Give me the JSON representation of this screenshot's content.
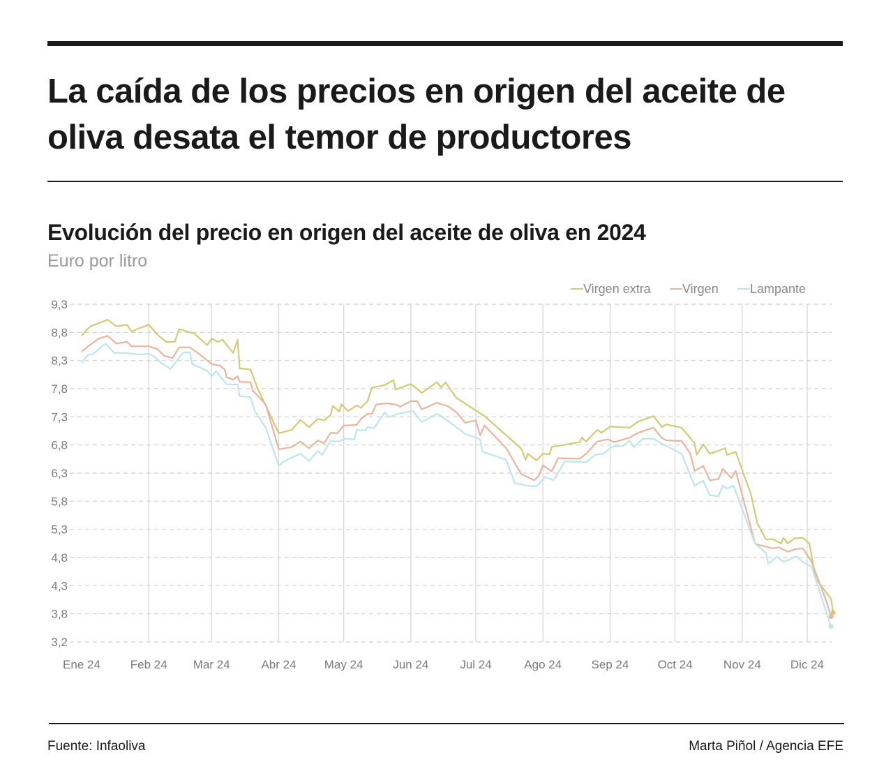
{
  "header": {
    "title": "La caída de los precios en origen del aceite de oliva desata el temor de productores"
  },
  "footer": {
    "source": "Fuente: Infaoliva",
    "credit": "Marta Piñol / Agencia EFE"
  },
  "chart_data": {
    "type": "line",
    "title": "Evolución del precio en origen del aceite de oliva en 2024",
    "subtitle": "Euro por litro",
    "xlabel": "",
    "ylabel": "",
    "ylim": [
      3.2,
      9.3
    ],
    "y_tick_labels": [
      "3,2",
      "3,8",
      "4,3",
      "4,8",
      "5,3",
      "5,8",
      "6,3",
      "6,8",
      "7,3",
      "7,8",
      "8,3",
      "8,8",
      "9,3"
    ],
    "x_tick_labels": [
      "Ene 24",
      "Feb 24",
      "Mar 24",
      "Abr 24",
      "May 24",
      "Jun 24",
      "Jul 24",
      "Ago 24",
      "Sep 24",
      "Oct 24",
      "Nov 24",
      "Dic 24"
    ],
    "grid": {
      "horizontal": "dashed",
      "vertical": "solid"
    },
    "legend_position": "top-right",
    "series": [
      {
        "name": "Virgen extra",
        "color": "#d2ca74",
        "points": [
          [
            "2024-01-01",
            8.73
          ],
          [
            "2024-01-05",
            8.9
          ],
          [
            "2024-01-13",
            9.02
          ],
          [
            "2024-01-17",
            8.9
          ],
          [
            "2024-01-22",
            8.93
          ],
          [
            "2024-01-24",
            8.81
          ],
          [
            "2024-02-01",
            8.93
          ],
          [
            "2024-02-05",
            8.75
          ],
          [
            "2024-02-09",
            8.62
          ],
          [
            "2024-02-13",
            8.62
          ],
          [
            "2024-02-15",
            8.85
          ],
          [
            "2024-02-22",
            8.77
          ],
          [
            "2024-02-28",
            8.56
          ],
          [
            "2024-03-01",
            8.68
          ],
          [
            "2024-03-04",
            8.62
          ],
          [
            "2024-03-06",
            8.66
          ],
          [
            "2024-03-11",
            8.42
          ],
          [
            "2024-03-13",
            8.66
          ],
          [
            "2024-03-14",
            8.14
          ],
          [
            "2024-03-19",
            8.12
          ],
          [
            "2024-03-22",
            7.8
          ],
          [
            "2024-04-01",
            6.97
          ],
          [
            "2024-04-07",
            7.03
          ],
          [
            "2024-04-11",
            7.21
          ],
          [
            "2024-04-15",
            7.08
          ],
          [
            "2024-04-19",
            7.23
          ],
          [
            "2024-04-22",
            7.2
          ],
          [
            "2024-04-25",
            7.3
          ],
          [
            "2024-04-26",
            7.46
          ],
          [
            "2024-04-29",
            7.36
          ],
          [
            "2024-04-30",
            7.49
          ],
          [
            "2024-05-03",
            7.37
          ],
          [
            "2024-05-07",
            7.47
          ],
          [
            "2024-05-09",
            7.43
          ],
          [
            "2024-05-12",
            7.55
          ],
          [
            "2024-05-14",
            7.79
          ],
          [
            "2024-05-20",
            7.84
          ],
          [
            "2024-05-24",
            7.93
          ],
          [
            "2024-05-25",
            7.76
          ],
          [
            "2024-06-01",
            7.86
          ],
          [
            "2024-06-06",
            7.7
          ],
          [
            "2024-06-13",
            7.89
          ],
          [
            "2024-06-15",
            7.8
          ],
          [
            "2024-06-17",
            7.89
          ],
          [
            "2024-06-22",
            7.61
          ],
          [
            "2024-07-01",
            7.38
          ],
          [
            "2024-07-05",
            7.28
          ],
          [
            "2024-07-18",
            6.83
          ],
          [
            "2024-07-22",
            6.69
          ],
          [
            "2024-07-24",
            6.49
          ],
          [
            "2024-07-25",
            6.6
          ],
          [
            "2024-07-29",
            6.48
          ],
          [
            "2024-08-01",
            6.6
          ],
          [
            "2024-08-04",
            6.59
          ],
          [
            "2024-08-05",
            6.72
          ],
          [
            "2024-08-18",
            6.81
          ],
          [
            "2024-08-19",
            6.89
          ],
          [
            "2024-08-21",
            6.82
          ],
          [
            "2024-08-26",
            7.03
          ],
          [
            "2024-08-28",
            6.98
          ],
          [
            "2024-09-01",
            7.09
          ],
          [
            "2024-09-10",
            7.07
          ],
          [
            "2024-09-14",
            7.18
          ],
          [
            "2024-09-21",
            7.28
          ],
          [
            "2024-09-25",
            7.08
          ],
          [
            "2024-09-27",
            7.13
          ],
          [
            "2024-10-04",
            7.07
          ],
          [
            "2024-10-10",
            6.79
          ],
          [
            "2024-10-11",
            6.58
          ],
          [
            "2024-10-14",
            6.77
          ],
          [
            "2024-10-17",
            6.6
          ],
          [
            "2024-10-21",
            6.65
          ],
          [
            "2024-10-24",
            6.7
          ],
          [
            "2024-10-25",
            6.58
          ],
          [
            "2024-10-29",
            6.63
          ],
          [
            "2024-11-05",
            5.87
          ],
          [
            "2024-11-08",
            5.34
          ],
          [
            "2024-11-12",
            5.05
          ],
          [
            "2024-11-15",
            5.06
          ],
          [
            "2024-11-19",
            4.98
          ],
          [
            "2024-11-20",
            5.08
          ],
          [
            "2024-11-22",
            4.98
          ],
          [
            "2024-11-25",
            5.07
          ],
          [
            "2024-11-29",
            5.08
          ],
          [
            "2024-12-02",
            4.98
          ],
          [
            "2024-12-05",
            4.34
          ],
          [
            "2024-12-12",
            3.98
          ],
          [
            "2024-12-13",
            3.73
          ]
        ]
      },
      {
        "name": "Virgen",
        "color": "#ebb49c",
        "points": [
          [
            "2024-01-01",
            8.44
          ],
          [
            "2024-01-04",
            8.54
          ],
          [
            "2024-01-09",
            8.68
          ],
          [
            "2024-01-13",
            8.73
          ],
          [
            "2024-01-17",
            8.59
          ],
          [
            "2024-01-22",
            8.62
          ],
          [
            "2024-01-24",
            8.54
          ],
          [
            "2024-02-01",
            8.54
          ],
          [
            "2024-02-05",
            8.49
          ],
          [
            "2024-02-08",
            8.37
          ],
          [
            "2024-02-12",
            8.33
          ],
          [
            "2024-02-15",
            8.52
          ],
          [
            "2024-02-20",
            8.52
          ],
          [
            "2024-02-24",
            8.41
          ],
          [
            "2024-03-01",
            8.22
          ],
          [
            "2024-03-05",
            8.19
          ],
          [
            "2024-03-07",
            8.12
          ],
          [
            "2024-03-08",
            7.98
          ],
          [
            "2024-03-11",
            7.94
          ],
          [
            "2024-03-13",
            8.0
          ],
          [
            "2024-03-14",
            7.9
          ],
          [
            "2024-03-19",
            7.89
          ],
          [
            "2024-03-20",
            7.74
          ],
          [
            "2024-03-26",
            7.49
          ],
          [
            "2024-04-01",
            6.68
          ],
          [
            "2024-04-07",
            6.72
          ],
          [
            "2024-04-11",
            6.82
          ],
          [
            "2024-04-15",
            6.7
          ],
          [
            "2024-04-19",
            6.84
          ],
          [
            "2024-04-22",
            6.79
          ],
          [
            "2024-04-25",
            6.98
          ],
          [
            "2024-04-28",
            6.97
          ],
          [
            "2024-05-01",
            7.11
          ],
          [
            "2024-05-07",
            7.12
          ],
          [
            "2024-05-09",
            7.23
          ],
          [
            "2024-05-12",
            7.32
          ],
          [
            "2024-05-14",
            7.32
          ],
          [
            "2024-05-16",
            7.49
          ],
          [
            "2024-05-21",
            7.51
          ],
          [
            "2024-05-25",
            7.49
          ],
          [
            "2024-05-27",
            7.45
          ],
          [
            "2024-06-01",
            7.55
          ],
          [
            "2024-06-04",
            7.55
          ],
          [
            "2024-06-06",
            7.4
          ],
          [
            "2024-06-13",
            7.52
          ],
          [
            "2024-06-18",
            7.46
          ],
          [
            "2024-06-22",
            7.35
          ],
          [
            "2024-06-26",
            7.16
          ],
          [
            "2024-07-01",
            7.2
          ],
          [
            "2024-07-03",
            6.93
          ],
          [
            "2024-07-05",
            7.11
          ],
          [
            "2024-07-15",
            6.7
          ],
          [
            "2024-07-22",
            6.23
          ],
          [
            "2024-07-28",
            6.12
          ],
          [
            "2024-07-30",
            6.2
          ],
          [
            "2024-08-01",
            6.39
          ],
          [
            "2024-08-05",
            6.28
          ],
          [
            "2024-08-08",
            6.52
          ],
          [
            "2024-08-18",
            6.51
          ],
          [
            "2024-08-21",
            6.6
          ],
          [
            "2024-08-26",
            6.82
          ],
          [
            "2024-08-31",
            6.86
          ],
          [
            "2024-09-03",
            6.81
          ],
          [
            "2024-09-10",
            6.89
          ],
          [
            "2024-09-14",
            6.98
          ],
          [
            "2024-09-21",
            7.07
          ],
          [
            "2024-09-25",
            6.88
          ],
          [
            "2024-09-27",
            6.84
          ],
          [
            "2024-10-04",
            6.83
          ],
          [
            "2024-10-08",
            6.6
          ],
          [
            "2024-10-10",
            6.29
          ],
          [
            "2024-10-14",
            6.38
          ],
          [
            "2024-10-17",
            6.12
          ],
          [
            "2024-10-21",
            6.14
          ],
          [
            "2024-10-23",
            6.33
          ],
          [
            "2024-10-27",
            6.16
          ],
          [
            "2024-10-29",
            6.29
          ],
          [
            "2024-11-07",
            4.97
          ],
          [
            "2024-11-15",
            4.89
          ],
          [
            "2024-11-18",
            4.91
          ],
          [
            "2024-11-22",
            4.83
          ],
          [
            "2024-11-26",
            4.88
          ],
          [
            "2024-11-29",
            4.89
          ],
          [
            "2024-12-03",
            4.65
          ],
          [
            "2024-12-10",
            3.92
          ],
          [
            "2024-12-12",
            3.66
          ]
        ]
      },
      {
        "name": "Lampante",
        "color": "#bce6eb",
        "points": [
          [
            "2024-01-01",
            8.24
          ],
          [
            "2024-01-04",
            8.39
          ],
          [
            "2024-01-06",
            8.39
          ],
          [
            "2024-01-12",
            8.59
          ],
          [
            "2024-01-16",
            8.42
          ],
          [
            "2024-01-21",
            8.42
          ],
          [
            "2024-01-28",
            8.39
          ],
          [
            "2024-02-01",
            8.41
          ],
          [
            "2024-02-04",
            8.34
          ],
          [
            "2024-02-07",
            8.23
          ],
          [
            "2024-02-11",
            8.13
          ],
          [
            "2024-02-17",
            8.43
          ],
          [
            "2024-02-20",
            8.43
          ],
          [
            "2024-02-21",
            8.22
          ],
          [
            "2024-02-28",
            8.1
          ],
          [
            "2024-03-01",
            8.0
          ],
          [
            "2024-03-03",
            8.09
          ],
          [
            "2024-03-08",
            7.85
          ],
          [
            "2024-03-13",
            7.85
          ],
          [
            "2024-03-14",
            7.64
          ],
          [
            "2024-03-19",
            7.62
          ],
          [
            "2024-03-21",
            7.36
          ],
          [
            "2024-03-26",
            7.07
          ],
          [
            "2024-04-01",
            6.38
          ],
          [
            "2024-04-03",
            6.45
          ],
          [
            "2024-04-07",
            6.53
          ],
          [
            "2024-04-11",
            6.6
          ],
          [
            "2024-04-15",
            6.47
          ],
          [
            "2024-04-19",
            6.65
          ],
          [
            "2024-04-21",
            6.58
          ],
          [
            "2024-04-25",
            6.83
          ],
          [
            "2024-04-29",
            6.82
          ],
          [
            "2024-05-01",
            6.87
          ],
          [
            "2024-05-06",
            6.86
          ],
          [
            "2024-05-07",
            7.03
          ],
          [
            "2024-05-11",
            7.02
          ],
          [
            "2024-05-12",
            7.08
          ],
          [
            "2024-05-15",
            7.06
          ],
          [
            "2024-05-20",
            7.35
          ],
          [
            "2024-05-22",
            7.26
          ],
          [
            "2024-05-26",
            7.32
          ],
          [
            "2024-05-31",
            7.36
          ],
          [
            "2024-06-02",
            7.37
          ],
          [
            "2024-06-06",
            7.17
          ],
          [
            "2024-06-13",
            7.32
          ],
          [
            "2024-06-15",
            7.28
          ],
          [
            "2024-06-21",
            7.11
          ],
          [
            "2024-06-26",
            6.96
          ],
          [
            "2024-07-03",
            6.86
          ],
          [
            "2024-07-04",
            6.64
          ],
          [
            "2024-07-15",
            6.49
          ],
          [
            "2024-07-19",
            6.07
          ],
          [
            "2024-07-25",
            6.02
          ],
          [
            "2024-07-29",
            6.01
          ],
          [
            "2024-08-02",
            6.18
          ],
          [
            "2024-08-06",
            6.12
          ],
          [
            "2024-08-11",
            6.46
          ],
          [
            "2024-08-21",
            6.45
          ],
          [
            "2024-08-25",
            6.58
          ],
          [
            "2024-08-29",
            6.6
          ],
          [
            "2024-09-02",
            6.73
          ],
          [
            "2024-09-07",
            6.74
          ],
          [
            "2024-09-10",
            6.84
          ],
          [
            "2024-09-12",
            6.72
          ],
          [
            "2024-09-16",
            6.87
          ],
          [
            "2024-09-21",
            6.87
          ],
          [
            "2024-09-25",
            6.78
          ],
          [
            "2024-09-29",
            6.7
          ],
          [
            "2024-10-04",
            6.6
          ],
          [
            "2024-10-10",
            6.02
          ],
          [
            "2024-10-14",
            6.11
          ],
          [
            "2024-10-17",
            5.85
          ],
          [
            "2024-10-21",
            5.83
          ],
          [
            "2024-10-23",
            6.02
          ],
          [
            "2024-10-25",
            5.97
          ],
          [
            "2024-10-28",
            6.02
          ],
          [
            "2024-11-07",
            4.97
          ],
          [
            "2024-11-12",
            4.81
          ],
          [
            "2024-11-13",
            4.61
          ],
          [
            "2024-11-17",
            4.74
          ],
          [
            "2024-11-20",
            4.65
          ],
          [
            "2024-11-23",
            4.69
          ],
          [
            "2024-11-26",
            4.75
          ],
          [
            "2024-11-29",
            4.64
          ],
          [
            "2024-12-03",
            4.56
          ],
          [
            "2024-12-12",
            3.48
          ]
        ]
      }
    ]
  }
}
